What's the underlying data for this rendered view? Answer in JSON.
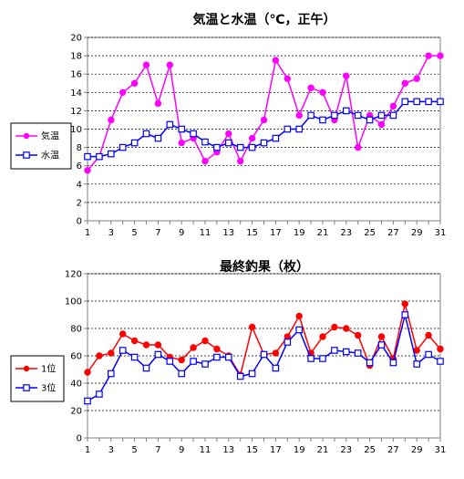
{
  "chart_data": [
    {
      "type": "line",
      "title": "気温と水温（℃，正午）",
      "xlabel": "",
      "ylabel": "",
      "x": [
        1,
        2,
        3,
        4,
        5,
        6,
        7,
        8,
        9,
        10,
        11,
        12,
        13,
        14,
        15,
        16,
        17,
        18,
        19,
        20,
        21,
        22,
        23,
        24,
        25,
        26,
        27,
        28,
        29,
        30,
        31
      ],
      "x_tick_labels": [
        "1",
        "3",
        "5",
        "7",
        "9",
        "11",
        "13",
        "15",
        "17",
        "19",
        "21",
        "23",
        "25",
        "27",
        "29",
        "31"
      ],
      "ylim": [
        0,
        20
      ],
      "y_tick_labels": [
        "0",
        "2",
        "4",
        "6",
        "8",
        "10",
        "12",
        "14",
        "16",
        "18",
        "20"
      ],
      "grid": true,
      "legend_position": "left",
      "series": [
        {
          "name": "気温",
          "color": "#ff00ff",
          "marker": "filled-circle",
          "values": [
            5.5,
            7,
            11,
            14,
            15,
            17,
            12.8,
            17,
            8.5,
            9,
            6.5,
            7.5,
            9.5,
            6.5,
            9,
            11,
            17.5,
            15.5,
            11.5,
            14.5,
            14,
            11,
            15.8,
            8,
            11.5,
            10.5,
            12.5,
            15,
            15.5,
            18,
            18
          ]
        },
        {
          "name": "水温",
          "color": "#0000ff",
          "marker": "open-square",
          "values": [
            7,
            7,
            7.3,
            8,
            8.5,
            9.5,
            9,
            10.5,
            10,
            9.5,
            8.6,
            8,
            8.5,
            8,
            8,
            8.5,
            9,
            10,
            10,
            11.5,
            11,
            11.5,
            12,
            11.5,
            11,
            11.5,
            11.5,
            13,
            13,
            13,
            13
          ]
        }
      ]
    },
    {
      "type": "line",
      "title": "最終釣果（枚）",
      "xlabel": "",
      "ylabel": "",
      "x": [
        1,
        2,
        3,
        4,
        5,
        6,
        7,
        8,
        9,
        10,
        11,
        12,
        13,
        14,
        15,
        16,
        17,
        18,
        19,
        20,
        21,
        22,
        23,
        24,
        25,
        26,
        27,
        28,
        29,
        30,
        31
      ],
      "x_tick_labels": [
        "1",
        "3",
        "5",
        "7",
        "9",
        "11",
        "13",
        "15",
        "17",
        "19",
        "21",
        "23",
        "25",
        "27",
        "29",
        "31"
      ],
      "ylim": [
        0,
        120
      ],
      "y_tick_labels": [
        "0",
        "20",
        "40",
        "60",
        "80",
        "100",
        "120"
      ],
      "grid": true,
      "legend_position": "left",
      "series": [
        {
          "name": "1位",
          "color": "#ff0000",
          "marker": "filled-circle",
          "values": [
            48,
            60,
            62,
            76,
            71,
            68,
            68,
            59,
            57,
            66,
            71,
            65,
            60,
            46,
            81,
            61,
            62,
            74,
            89,
            62,
            74,
            81,
            80,
            75,
            53,
            74,
            58,
            98,
            64,
            75,
            65
          ]
        },
        {
          "name": "3位",
          "color": "#0000ff",
          "marker": "open-square",
          "values": [
            27,
            32,
            47,
            64,
            59,
            51,
            61,
            56,
            47,
            56,
            54,
            59,
            59,
            45,
            47,
            61,
            51,
            70,
            79,
            58,
            58,
            64,
            63,
            62,
            55,
            68,
            55,
            90,
            54,
            61,
            56
          ]
        }
      ]
    }
  ]
}
